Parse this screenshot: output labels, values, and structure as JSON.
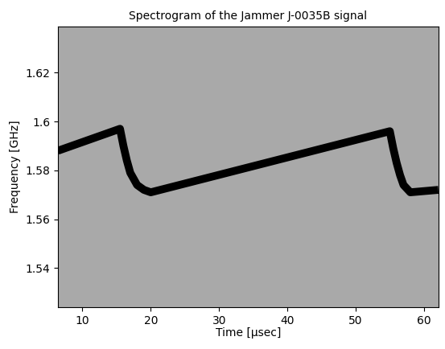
{
  "chart_data": {
    "type": "line",
    "title": "Spectrogram of the Jammer J-0035B signal",
    "x_label": "Time [μsec]",
    "y_label": "Frequency [GHz]",
    "x": [
      6.4,
      15.5,
      16,
      16.5,
      17,
      18,
      19,
      20,
      55,
      55.5,
      56,
      56.5,
      57,
      58,
      62.1
    ],
    "values": [
      1.588,
      1.597,
      1.59,
      1.584,
      1.579,
      1.574,
      1.572,
      1.571,
      1.596,
      1.589,
      1.583,
      1.578,
      1.574,
      1.571,
      1.572
    ],
    "color": "#000000",
    "xlim": [
      6.4,
      62.1
    ],
    "ylim": [
      1.524,
      1.639
    ],
    "xticks": [
      10,
      20,
      30,
      40,
      50,
      60
    ],
    "yticks": [
      1.54,
      1.56,
      1.58,
      1.6,
      1.62
    ]
  }
}
